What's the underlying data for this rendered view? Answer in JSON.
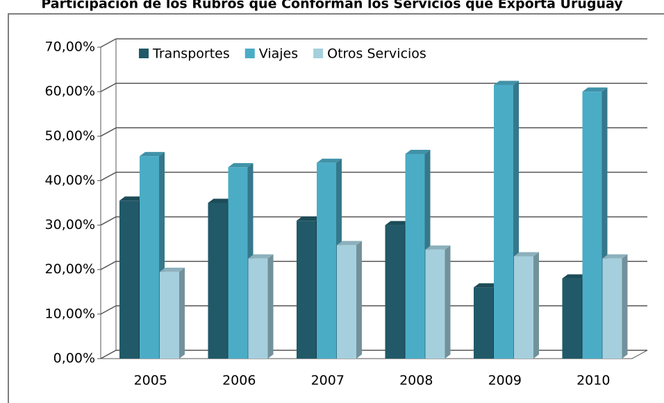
{
  "chart_data": {
    "type": "bar3d",
    "title": "Participación de los Rubros que Conforman los Servicios que Exporta Uruguay",
    "categories": [
      "2005",
      "2006",
      "2007",
      "2008",
      "2009",
      "2010"
    ],
    "series": [
      {
        "name": "Transportes",
        "color": "#215968",
        "values": [
          35.5,
          35,
          31,
          30,
          16,
          18
        ]
      },
      {
        "name": "Viajes",
        "color": "#4bacc6",
        "values": [
          45.5,
          43,
          44,
          46,
          61.5,
          60
        ]
      },
      {
        "name": "Otros Servicios",
        "color": "#a5cfdd",
        "values": [
          19.5,
          22.5,
          25.5,
          24.5,
          23,
          22.5
        ]
      }
    ],
    "ylim": [
      0,
      70
    ],
    "yticks": [
      {
        "value": 0,
        "label": "0,00%"
      },
      {
        "value": 10,
        "label": "10,00%"
      },
      {
        "value": 20,
        "label": "20,00%"
      },
      {
        "value": 30,
        "label": "30,00%"
      },
      {
        "value": 40,
        "label": "40,00%"
      },
      {
        "value": 50,
        "label": "50,00%"
      },
      {
        "value": 60,
        "label": "60,00%"
      },
      {
        "value": 70,
        "label": "70,00%"
      }
    ],
    "grid": true,
    "legend": "top-left"
  }
}
